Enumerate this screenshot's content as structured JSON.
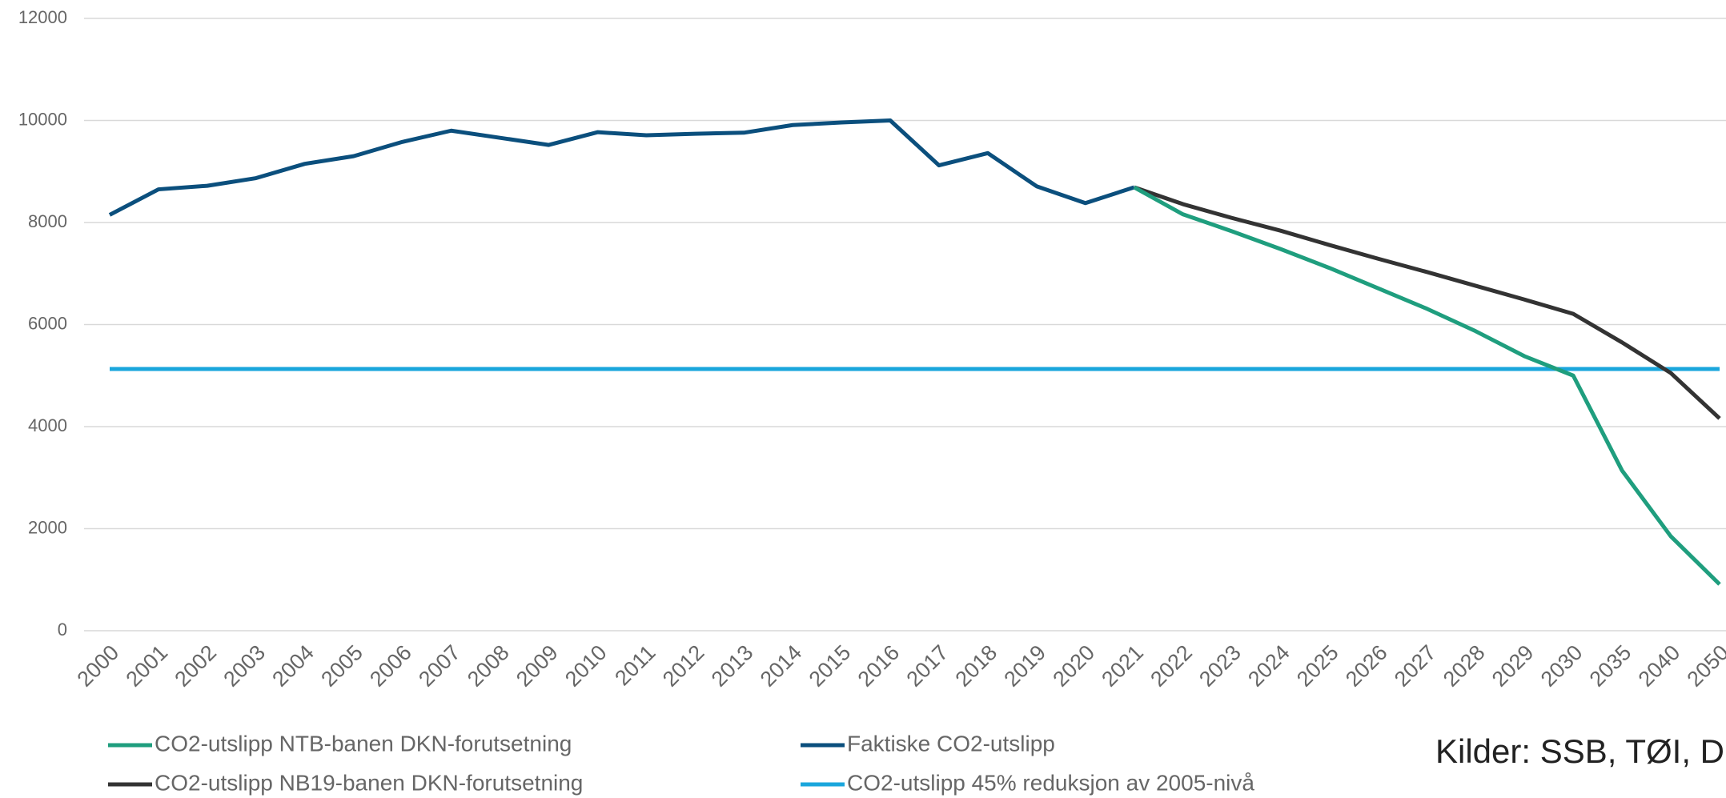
{
  "chart_data": {
    "type": "line",
    "categories": [
      "2000",
      "2001",
      "2002",
      "2003",
      "2004",
      "2005",
      "2006",
      "2007",
      "2008",
      "2009",
      "2010",
      "2011",
      "2012",
      "2013",
      "2014",
      "2015",
      "2016",
      "2017",
      "2018",
      "2019",
      "2020",
      "2021",
      "2022",
      "2023",
      "2024",
      "2025",
      "2026",
      "2027",
      "2028",
      "2029",
      "2030",
      "2035",
      "2040",
      "2050"
    ],
    "series": [
      {
        "name": "CO2-utslipp NTB-banen DKN-forutsetning",
        "color": "#1f9e7e",
        "values": [
          null,
          null,
          null,
          null,
          null,
          null,
          null,
          null,
          null,
          null,
          null,
          null,
          null,
          null,
          null,
          null,
          null,
          null,
          null,
          null,
          null,
          8690,
          8160,
          7830,
          7480,
          7110,
          6710,
          6310,
          5870,
          5380,
          5000,
          3140,
          1850,
          910
        ]
      },
      {
        "name": "Faktiske CO2-utslipp",
        "color": "#0b4f7d",
        "values": [
          8150,
          8650,
          8720,
          8870,
          9150,
          9300,
          9580,
          9800,
          9660,
          9520,
          9770,
          9710,
          9740,
          9760,
          9910,
          9960,
          10000,
          9120,
          9360,
          8710,
          8380,
          8690,
          null,
          null,
          null,
          null,
          null,
          null,
          null,
          null,
          null,
          null,
          null,
          null
        ]
      },
      {
        "name": "CO2-utslipp NB19-banen DKN-forutsetning",
        "color": "#333333",
        "values": [
          null,
          null,
          null,
          null,
          null,
          null,
          null,
          null,
          null,
          null,
          null,
          null,
          null,
          null,
          null,
          null,
          null,
          null,
          null,
          null,
          null,
          8690,
          8360,
          8090,
          7840,
          7560,
          7290,
          7030,
          6760,
          6490,
          6210,
          5650,
          5050,
          4160
        ]
      },
      {
        "name": "CO2-utslipp 45% reduksjon av 2005-nivå",
        "color": "#1aa6dc",
        "values": [
          5130,
          5130,
          5130,
          5130,
          5130,
          5130,
          5130,
          5130,
          5130,
          5130,
          5130,
          5130,
          5130,
          5130,
          5130,
          5130,
          5130,
          5130,
          5130,
          5130,
          5130,
          5130,
          5130,
          5130,
          5130,
          5130,
          5130,
          5130,
          5130,
          5130,
          5130,
          5130,
          5130,
          5130
        ]
      }
    ],
    "ylim": [
      0,
      12000
    ],
    "yticks": [
      0,
      2000,
      4000,
      6000,
      8000,
      10000,
      12000
    ],
    "grid": true,
    "annotation": "Kilder: SSB, TØI, D"
  }
}
